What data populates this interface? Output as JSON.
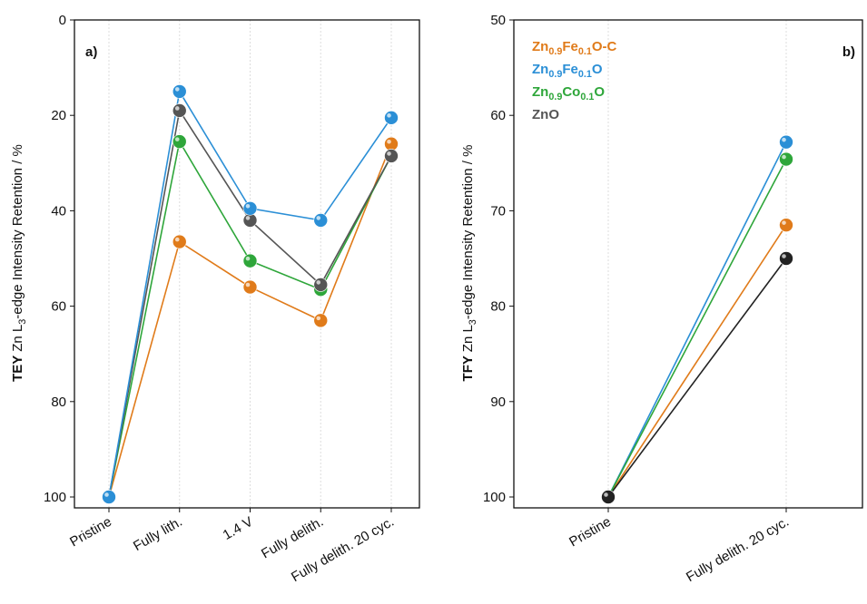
{
  "chart_data": [
    {
      "type": "line",
      "panel_label": "a)",
      "ylabel_bold": "TEY",
      "ylabel": "Zn L3-edge Intensity Retention / %",
      "categories": [
        "Pristine",
        "Fully lith.",
        "1.4 V",
        "Fully delith.",
        "Fully delith. 20 cyc."
      ],
      "ylim": [
        0,
        100
      ],
      "yticks": [
        0,
        20,
        40,
        60,
        80,
        100
      ],
      "y_inverted": true,
      "grid": true,
      "series": [
        {
          "color": "#e07b1a",
          "values": [
            100,
            46.5,
            56,
            63,
            26
          ]
        },
        {
          "color": "#2ea63a",
          "values": [
            100,
            25.5,
            50.5,
            56.5,
            28.5
          ]
        },
        {
          "color": "#555555",
          "values": [
            100,
            19,
            42,
            55.5,
            28.5
          ]
        },
        {
          "color": "#2b8fd6",
          "values": [
            100,
            15,
            39.5,
            42,
            20.5
          ]
        }
      ]
    },
    {
      "type": "line",
      "panel_label": "b)",
      "ylabel_bold": "TFY",
      "ylabel": "Zn L3-edge  Intensity Retention / %",
      "categories": [
        "Pristine",
        "Fully delith. 20 cyc."
      ],
      "ylim": [
        50,
        100
      ],
      "yticks": [
        50,
        60,
        70,
        80,
        90,
        100
      ],
      "y_inverted": true,
      "grid": true,
      "legend": "upper left",
      "series": [
        {
          "name": "Zn0.9Fe0.1O-C",
          "color": "#e07b1a",
          "values": [
            100,
            71.5
          ]
        },
        {
          "name": "Zn0.9Fe0.1O",
          "color": "#2b8fd6",
          "values": [
            100,
            62.8
          ]
        },
        {
          "name": "Zn0.9Co0.1O",
          "color": "#2ea63a",
          "values": [
            100,
            64.6
          ]
        },
        {
          "name": "ZnO",
          "color": "#555555",
          "line_color": "#222222",
          "values": [
            100,
            75
          ]
        }
      ]
    }
  ]
}
